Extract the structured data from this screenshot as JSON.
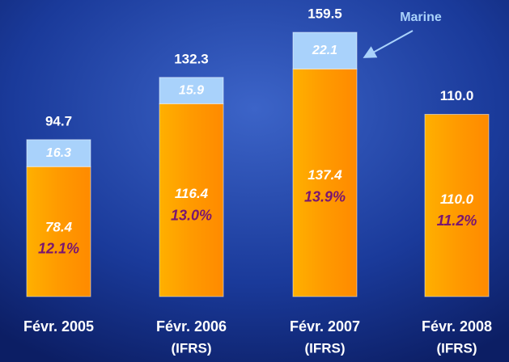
{
  "chart_data": {
    "type": "stacked-bar",
    "categories": [
      "Févr. 2005",
      "Févr. 2006",
      "Févr. 2007",
      "Févr. 2008"
    ],
    "category_notes": [
      null,
      "(IFRS)",
      "(IFRS)",
      "(IFRS)"
    ],
    "series": [
      {
        "color": "#ff9a00",
        "values": [
          78.4,
          116.4,
          137.4,
          110.0
        ],
        "value_labels": [
          "78.4",
          "116.4",
          "137.4",
          "110.0"
        ]
      },
      {
        "name": "Marine",
        "color": "#a9d2fb",
        "values": [
          16.3,
          15.9,
          22.1,
          null
        ]
      }
    ],
    "totals": [
      94.7,
      132.3,
      159.5,
      110.0
    ],
    "total_labels": [
      "94.7",
      "132.3",
      "159.5",
      "110.0"
    ],
    "margins": [
      12.1,
      13.0,
      13.9,
      11.2
    ],
    "margin_labels": [
      "12.1%",
      "13.0%",
      "13.9%",
      "11.2%"
    ],
    "ylim": [
      0,
      160
    ]
  }
}
